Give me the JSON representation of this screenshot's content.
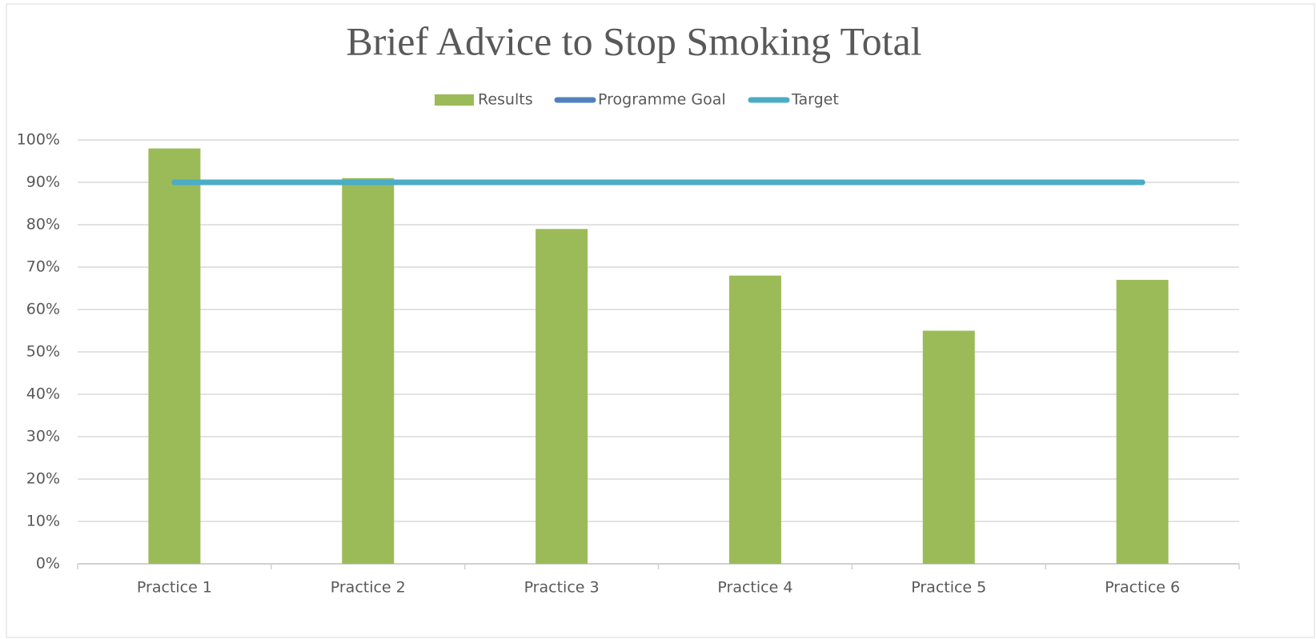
{
  "chart_data": {
    "type": "bar_line",
    "title": "Brief Advice to Stop Smoking Total",
    "categories": [
      "Practice 1",
      "Practice 2",
      "Practice 3",
      "Practice 4",
      "Practice 5",
      "Practice 6"
    ],
    "series": [
      {
        "name": "Results",
        "type": "bar",
        "color": "#9bbb59",
        "values": [
          98,
          91,
          79,
          68,
          55,
          67
        ]
      },
      {
        "name": "Programme Goal",
        "type": "line",
        "color": "#4f81bd",
        "values": [
          90,
          90,
          90,
          90,
          90,
          90
        ]
      },
      {
        "name": "Target",
        "type": "line",
        "color": "#4bacc6",
        "values": [
          90,
          90,
          90,
          90,
          90,
          90
        ]
      }
    ],
    "ylim": [
      0,
      100
    ],
    "yticks": [
      {
        "value": 0,
        "label": "0%"
      },
      {
        "value": 10,
        "label": "10%"
      },
      {
        "value": 20,
        "label": "20%"
      },
      {
        "value": 30,
        "label": "30%"
      },
      {
        "value": 40,
        "label": "40%"
      },
      {
        "value": 50,
        "label": "50%"
      },
      {
        "value": 60,
        "label": "60%"
      },
      {
        "value": 70,
        "label": "70%"
      },
      {
        "value": 80,
        "label": "80%"
      },
      {
        "value": 90,
        "label": "90%"
      },
      {
        "value": 100,
        "label": "100%"
      }
    ],
    "grid": true,
    "legend": "top"
  }
}
